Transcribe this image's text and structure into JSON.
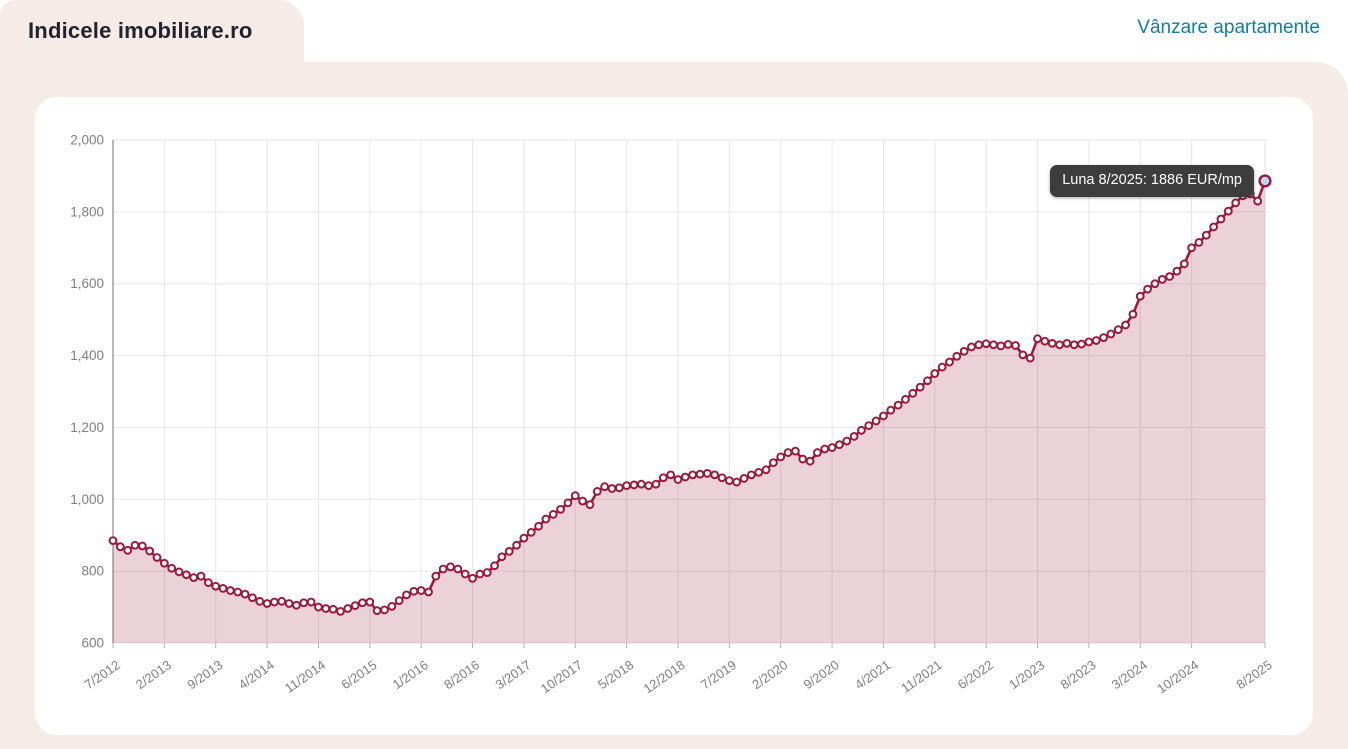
{
  "header": {
    "title": "Indicele imobiliare.ro",
    "link": "Vânzare apartamente"
  },
  "tooltip": {
    "text": "Luna 8/2025: 1886 EUR/mp"
  },
  "colors": {
    "page_pink": "#f7ebe7",
    "card_white": "#ffffff",
    "link_teal": "#147d9f",
    "title_dark": "#21242e",
    "line": "#9a1b3c",
    "area_fill": "rgba(154,27,60,0.2)",
    "marker_fill": "#ffffff",
    "highlight_fill": "#b6d8f3",
    "grid": "#e6e6e6",
    "axis": "#8a8a8a",
    "tick": "#b0b0b0",
    "label_gray": "#808080",
    "tooltip_bg": "#3d3d3d",
    "tooltip_text": "#ffffff"
  },
  "chart_data": {
    "type": "area",
    "title": "",
    "unit": "EUR/mp",
    "x_start": "7/2012",
    "x_end": "8/2025",
    "grid": true,
    "legend": "none",
    "ylim": [
      600,
      2000
    ],
    "y_tick_values": [
      2000,
      1800,
      1600,
      1400,
      1200,
      1000,
      800,
      600
    ],
    "y_tick_labels": [
      "2,000",
      "1,800",
      "1,600",
      "1,400",
      "1,200",
      "1,000",
      "800",
      "600"
    ],
    "x_tick_labels": [
      "7/2012",
      "2/2013",
      "9/2013",
      "4/2014",
      "11/2014",
      "6/2015",
      "1/2016",
      "8/2016",
      "3/2017",
      "10/2017",
      "5/2018",
      "12/2018",
      "7/2019",
      "2/2020",
      "9/2020",
      "4/2021",
      "11/2021",
      "6/2022",
      "1/2023",
      "8/2023",
      "3/2024",
      "10/2024",
      "8/2025"
    ],
    "x_tick_indices": [
      0,
      7,
      14,
      21,
      28,
      35,
      42,
      49,
      56,
      63,
      70,
      77,
      84,
      91,
      98,
      105,
      112,
      119,
      126,
      133,
      140,
      147,
      157
    ],
    "values": [
      885,
      868,
      858,
      872,
      870,
      856,
      838,
      822,
      808,
      798,
      790,
      782,
      786,
      768,
      758,
      752,
      746,
      742,
      736,
      726,
      716,
      710,
      714,
      716,
      710,
      705,
      712,
      714,
      700,
      696,
      694,
      688,
      696,
      704,
      712,
      714,
      690,
      692,
      702,
      718,
      734,
      744,
      746,
      742,
      786,
      806,
      812,
      806,
      792,
      780,
      792,
      796,
      815,
      840,
      855,
      872,
      892,
      908,
      925,
      945,
      958,
      972,
      990,
      1010,
      995,
      985,
      1022,
      1035,
      1030,
      1032,
      1038,
      1040,
      1042,
      1038,
      1042,
      1060,
      1068,
      1055,
      1062,
      1068,
      1070,
      1072,
      1068,
      1060,
      1052,
      1048,
      1058,
      1068,
      1075,
      1082,
      1102,
      1118,
      1130,
      1134,
      1112,
      1106,
      1130,
      1140,
      1144,
      1152,
      1162,
      1175,
      1192,
      1205,
      1218,
      1232,
      1248,
      1262,
      1278,
      1295,
      1312,
      1330,
      1350,
      1368,
      1382,
      1398,
      1412,
      1424,
      1430,
      1433,
      1430,
      1427,
      1431,
      1428,
      1402,
      1393,
      1447,
      1440,
      1434,
      1430,
      1434,
      1430,
      1432,
      1438,
      1442,
      1450,
      1460,
      1472,
      1485,
      1515,
      1565,
      1585,
      1600,
      1612,
      1620,
      1635,
      1655,
      1700,
      1715,
      1735,
      1758,
      1780,
      1802,
      1825,
      1845,
      1850,
      1830,
      1886
    ],
    "highlight": {
      "index": 157,
      "month": "8/2025",
      "value": 1886,
      "tooltip": "Luna 8/2025: 1886 EUR/mp"
    }
  }
}
